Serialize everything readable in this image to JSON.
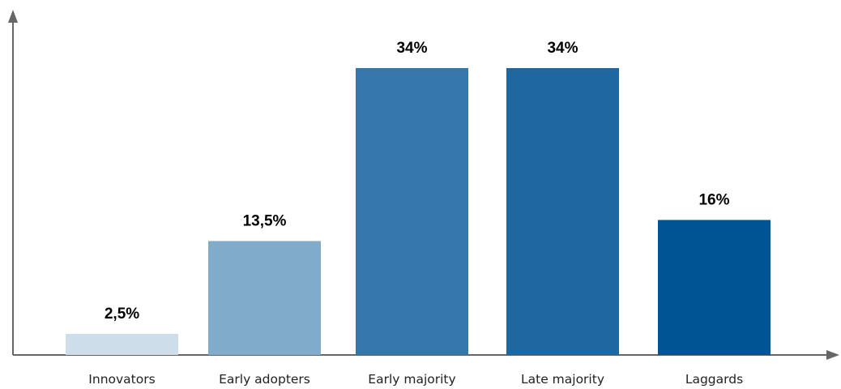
{
  "chart_data": {
    "type": "bar",
    "categories": [
      "Innovators",
      "Early adopters",
      "Early majority",
      "Late majority",
      "Laggards"
    ],
    "values": [
      2.5,
      13.5,
      34,
      34,
      16
    ],
    "value_labels": [
      "2,5%",
      "13,5%",
      "34%",
      "34%",
      "16%"
    ],
    "bar_colors": [
      "#cddde9",
      "#80abcb",
      "#3478ab",
      "#1e67a0",
      "#005494"
    ],
    "title": "",
    "xlabel": "",
    "ylabel": "",
    "ylim": [
      0,
      34
    ],
    "grid": false,
    "legend": "none"
  },
  "colors": {
    "axis": "#666666",
    "value_text": "#000000",
    "category_text": "#222222"
  }
}
